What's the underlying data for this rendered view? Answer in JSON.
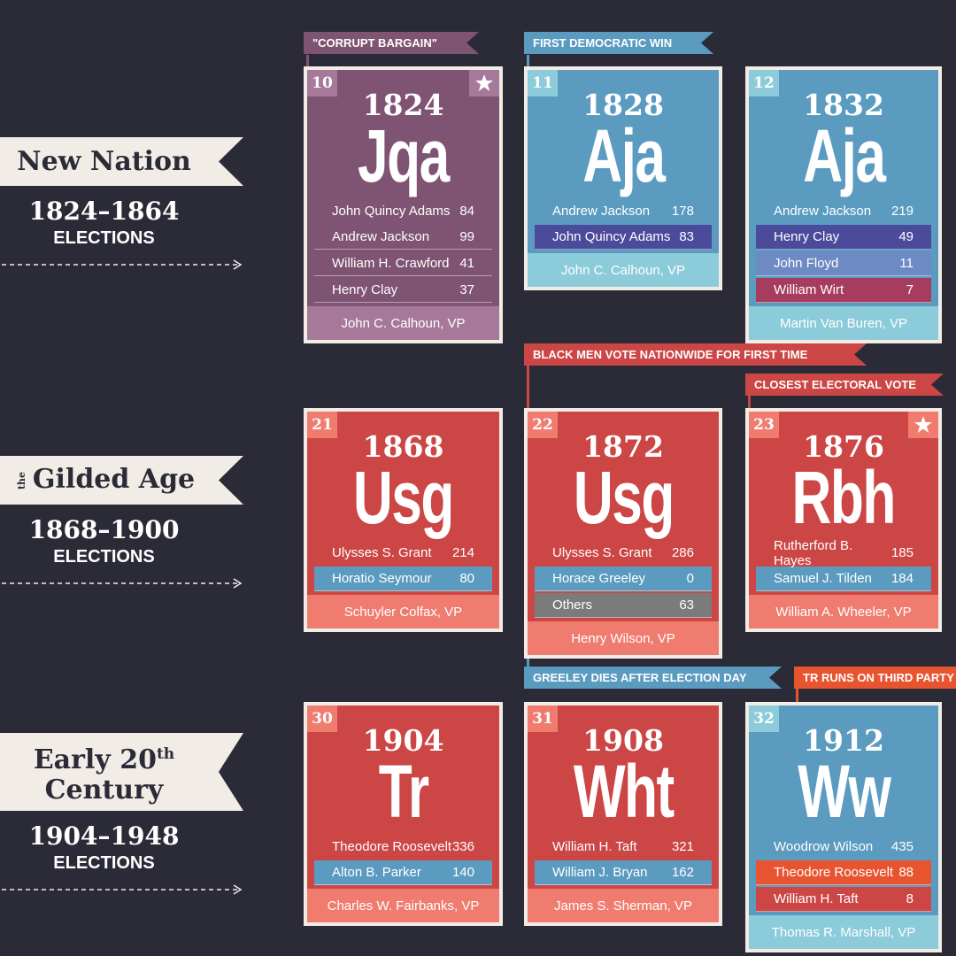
{
  "eras": [
    {
      "prefix": null,
      "title": [
        "New Nation"
      ],
      "sup": null,
      "years": "1824–1864",
      "caption": "ELECTIONS"
    },
    {
      "prefix": "the",
      "title": [
        "Gilded Age"
      ],
      "sup": null,
      "years": "1868–1900",
      "caption": "ELECTIONS"
    },
    {
      "prefix": null,
      "title": [
        "Early 20",
        "Century"
      ],
      "sup": "th",
      "years": "1904–1948",
      "caption": "ELECTIONS"
    }
  ],
  "cards": [
    {
      "number": 10,
      "year": 1824,
      "symbol": "Jqa",
      "star": true,
      "color": "#7e5472",
      "light": "#a6799a",
      "results": [
        {
          "name": "John Quincy Adams",
          "votes": 84,
          "color": null
        },
        {
          "name": "Andrew Jackson",
          "votes": 99,
          "color": "#7e5472"
        },
        {
          "name": "William H. Crawford",
          "votes": 41,
          "color": "#7e5472"
        },
        {
          "name": "Henry Clay",
          "votes": 37,
          "color": "#7e5472"
        }
      ],
      "vp": "John C. Calhoun, VP"
    },
    {
      "number": 11,
      "year": 1828,
      "symbol": "Aja",
      "star": false,
      "color": "#5b9bc0",
      "light": "#8ccbd9",
      "results": [
        {
          "name": "Andrew Jackson",
          "votes": 178,
          "color": null
        },
        {
          "name": "John Quincy Adams",
          "votes": 83,
          "color": "#4b4a9b"
        }
      ],
      "vp": "John C. Calhoun, VP"
    },
    {
      "number": 12,
      "year": 1832,
      "symbol": "Aja",
      "star": false,
      "color": "#5b9bc0",
      "light": "#8ccbd9",
      "results": [
        {
          "name": "Andrew Jackson",
          "votes": 219,
          "color": null
        },
        {
          "name": "Henry Clay",
          "votes": 49,
          "color": "#4b4a9b"
        },
        {
          "name": "John Floyd",
          "votes": 11,
          "color": "#6d8ac5"
        },
        {
          "name": "William Wirt",
          "votes": 7,
          "color": "#a63d5e"
        }
      ],
      "vp": "Martin Van Buren, VP"
    },
    {
      "number": 21,
      "year": 1868,
      "symbol": "Usg",
      "star": false,
      "color": "#cc4646",
      "light": "#ef7c6f",
      "results": [
        {
          "name": "Ulysses S. Grant",
          "votes": 214,
          "color": null
        },
        {
          "name": "Horatio Seymour",
          "votes": 80,
          "color": "#5b9bc0"
        }
      ],
      "vp": "Schuyler Colfax, VP"
    },
    {
      "number": 22,
      "year": 1872,
      "symbol": "Usg",
      "star": false,
      "color": "#cc4646",
      "light": "#ef7c6f",
      "results": [
        {
          "name": "Ulysses S. Grant",
          "votes": 286,
          "color": null
        },
        {
          "name": "Horace Greeley",
          "votes": 0,
          "color": "#5b9bc0"
        },
        {
          "name": "Others",
          "votes": 63,
          "color": "#7b7b7b"
        }
      ],
      "vp": "Henry Wilson, VP"
    },
    {
      "number": 23,
      "year": 1876,
      "symbol": "Rbh",
      "star": true,
      "color": "#cc4646",
      "light": "#ef7c6f",
      "results": [
        {
          "name": "Rutherford B. Hayes",
          "votes": 185,
          "color": null
        },
        {
          "name": "Samuel J. Tilden",
          "votes": 184,
          "color": "#5b9bc0"
        }
      ],
      "vp": "William A. Wheeler, VP"
    },
    {
      "number": 30,
      "year": 1904,
      "symbol": "Tr",
      "star": false,
      "color": "#cc4646",
      "light": "#ef7c6f",
      "results": [
        {
          "name": "Theodore Roosevelt",
          "votes": 336,
          "color": null
        },
        {
          "name": "Alton B. Parker",
          "votes": 140,
          "color": "#5b9bc0"
        }
      ],
      "vp": "Charles W. Fairbanks, VP"
    },
    {
      "number": 31,
      "year": 1908,
      "symbol": "Wht",
      "star": false,
      "color": "#cc4646",
      "light": "#ef7c6f",
      "results": [
        {
          "name": "William H. Taft",
          "votes": 321,
          "color": null
        },
        {
          "name": "William J. Bryan",
          "votes": 162,
          "color": "#5b9bc0"
        }
      ],
      "vp": "James S. Sherman, VP"
    },
    {
      "number": 32,
      "year": 1912,
      "symbol": "Ww",
      "star": false,
      "color": "#5b9bc0",
      "light": "#8ccbd9",
      "results": [
        {
          "name": "Woodrow Wilson",
          "votes": 435,
          "color": null
        },
        {
          "name": "Theodore Roosevelt",
          "votes": 88,
          "color": "#e8542f"
        },
        {
          "name": "William H. Taft",
          "votes": 8,
          "color": "#cc4646"
        }
      ],
      "vp": "Thomas R. Marshall, VP"
    }
  ],
  "banners": [
    {
      "text": "\"CORRUPT BARGAIN\"",
      "color": "#7e5472"
    },
    {
      "text": "FIRST DEMOCRATIC WIN",
      "color": "#5b9bc0"
    },
    {
      "text": "BLACK MEN VOTE NATIONWIDE FOR FIRST TIME",
      "color": "#cc4646"
    },
    {
      "text": "CLOSEST ELECTORAL VOTE",
      "color": "#cc4646"
    },
    {
      "text": "GREELEY DIES AFTER ELECTION DAY",
      "color": "#5b9bc0"
    },
    {
      "text": "TR RUNS ON THIRD PARTY",
      "color": "#e8542f"
    }
  ]
}
